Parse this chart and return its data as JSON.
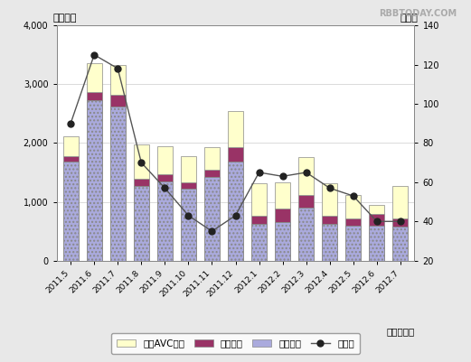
{
  "categories": [
    "2011.5",
    "2011.6",
    "2011.7",
    "2011.8",
    "2011.9",
    "2011.10",
    "2011.11",
    "2011.12",
    "2012.1",
    "2012.2",
    "2012.3",
    "2012.4",
    "2012.5",
    "2012.6",
    "2012.7"
  ],
  "eizo": [
    1680,
    2720,
    2620,
    1270,
    1350,
    1220,
    1430,
    1680,
    620,
    660,
    900,
    620,
    590,
    600,
    580
  ],
  "onsei": [
    100,
    140,
    200,
    120,
    120,
    110,
    120,
    250,
    140,
    220,
    210,
    150,
    130,
    200,
    140
  ],
  "car_avc": [
    330,
    490,
    500,
    580,
    480,
    440,
    380,
    620,
    550,
    450,
    650,
    550,
    400,
    150,
    550
  ],
  "yoy": [
    90,
    125,
    118,
    70,
    57,
    43,
    35,
    43,
    65,
    63,
    65,
    57,
    53,
    40,
    40
  ],
  "bar_color_eizo": "#aaaadd",
  "bar_color_onsei": "#993366",
  "bar_color_car_avc": "#ffffcc",
  "line_color": "#555555",
  "marker_color": "#222222",
  "ylim_left": [
    0,
    4000
  ],
  "ylim_right": [
    20,
    140
  ],
  "yticks_left": [
    0,
    1000,
    2000,
    3000,
    4000
  ],
  "ytick_labels_left": [
    "0",
    "1,000",
    "2,000",
    "3,000",
    "4,000"
  ],
  "yticks_right": [
    20,
    40,
    60,
    80,
    100,
    120,
    140
  ],
  "ytick_labels_right": [
    "20",
    "40",
    "60",
    "80",
    "100",
    "120",
    "140"
  ],
  "ylabel_left": "（億円）",
  "ylabel_right": "（％）",
  "xlabel": "（年・月）",
  "legend_labels": [
    "カーAVC機器",
    "音声機器",
    "映像機器",
    "前年比"
  ],
  "watermark": "RBBTODAY.COM",
  "bg_color": "#e8e8e8",
  "plot_bg_color": "#ffffff"
}
